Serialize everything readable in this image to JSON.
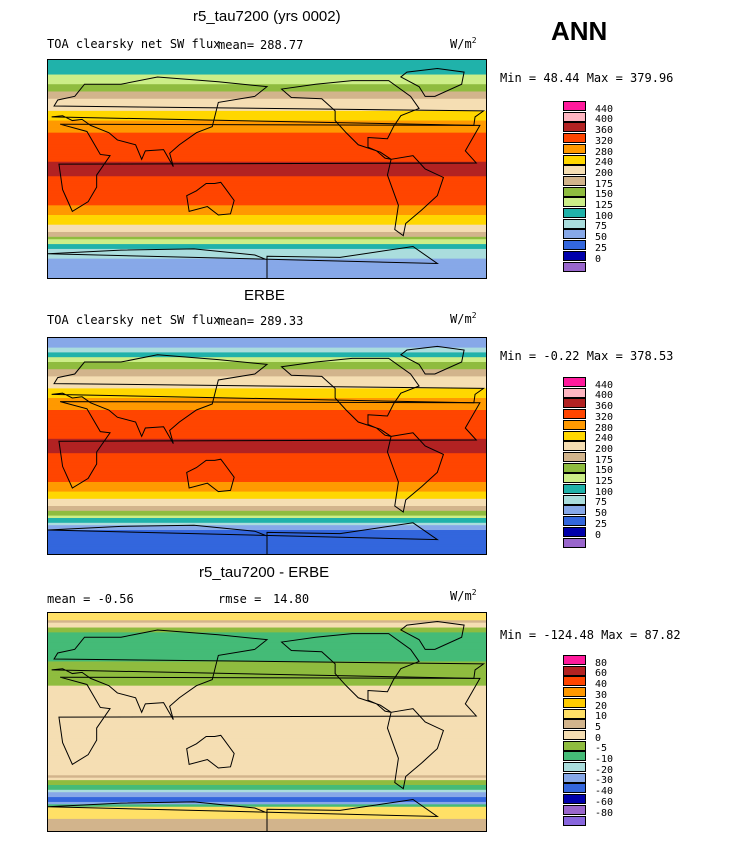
{
  "header": {
    "ann_label": "ANN"
  },
  "panels": [
    {
      "title": "r5_tau7200 (yrs 0002)",
      "variable_label": "TOA clearsky net SW flux",
      "mean_label": "mean=",
      "mean_value": "288.77",
      "units_base": "W/m",
      "units_exp": "2",
      "minmax": "Min =  48.44 Max = 379.96",
      "type": "field"
    },
    {
      "title": "ERBE",
      "variable_label": "TOA clearsky net SW flux",
      "mean_label": "mean=",
      "mean_value": "289.33",
      "units_base": "W/m",
      "units_exp": "2",
      "minmax": "Min =  -0.22 Max = 378.53",
      "type": "field"
    },
    {
      "title": "r5_tau7200 - ERBE",
      "variable_label": "mean =  -0.56",
      "mean_label": "rmse =",
      "mean_value": "14.80",
      "units_base": "W/m",
      "units_exp": "2",
      "minmax": "Min = -124.48 Max =  87.82",
      "type": "diff"
    }
  ],
  "chart_data": [
    {
      "type": "heatmap",
      "title": "r5_tau7200 (yrs 0002)",
      "variable": "TOA clearsky net SW flux",
      "units": "W/m2",
      "mean": 288.77,
      "min": 48.44,
      "max": 379.96,
      "legend_levels": [
        "440",
        "400",
        "360",
        "320",
        "280",
        "240",
        "200",
        "175",
        "150",
        "125",
        "100",
        "75",
        "50",
        "25",
        "0"
      ],
      "legend_colors": [
        "#ff1a9c",
        "#ffb6c1",
        "#b22222",
        "#ff4500",
        "#ff9900",
        "#ffd700",
        "#f5deb3",
        "#d2b48c",
        "#8fbc3f",
        "#ccee88",
        "#20b2aa",
        "#aadddd",
        "#87a8e8",
        "#3366dd",
        "#0000aa",
        "#9966cc"
      ],
      "latitude_profile": [
        {
          "lat": 85,
          "value": 100
        },
        {
          "lat": 70,
          "value": 150
        },
        {
          "lat": 60,
          "value": 190
        },
        {
          "lat": 50,
          "value": 230
        },
        {
          "lat": 40,
          "value": 280
        },
        {
          "lat": 30,
          "value": 320
        },
        {
          "lat": 20,
          "value": 345
        },
        {
          "lat": 0,
          "value": 365
        },
        {
          "lat": -20,
          "value": 345
        },
        {
          "lat": -30,
          "value": 320
        },
        {
          "lat": -40,
          "value": 270
        },
        {
          "lat": -50,
          "value": 210
        },
        {
          "lat": -60,
          "value": 140
        },
        {
          "lat": -70,
          "value": 80
        },
        {
          "lat": -85,
          "value": 60
        }
      ]
    },
    {
      "type": "heatmap",
      "title": "ERBE",
      "variable": "TOA clearsky net SW flux",
      "units": "W/m2",
      "mean": 289.33,
      "min": -0.22,
      "max": 378.53,
      "legend_levels": [
        "440",
        "400",
        "360",
        "320",
        "280",
        "240",
        "200",
        "175",
        "150",
        "125",
        "100",
        "75",
        "50",
        "25",
        "0"
      ],
      "legend_colors": [
        "#ff1a9c",
        "#ffb6c1",
        "#b22222",
        "#ff4500",
        "#ff9900",
        "#ffd700",
        "#f5deb3",
        "#d2b48c",
        "#8fbc3f",
        "#ccee88",
        "#20b2aa",
        "#aadddd",
        "#87a8e8",
        "#3366dd",
        "#0000aa",
        "#9966cc"
      ],
      "latitude_profile": [
        {
          "lat": 85,
          "value": 60
        },
        {
          "lat": 70,
          "value": 150
        },
        {
          "lat": 60,
          "value": 190
        },
        {
          "lat": 50,
          "value": 230
        },
        {
          "lat": 40,
          "value": 280
        },
        {
          "lat": 30,
          "value": 320
        },
        {
          "lat": 20,
          "value": 345
        },
        {
          "lat": 0,
          "value": 365
        },
        {
          "lat": -20,
          "value": 345
        },
        {
          "lat": -30,
          "value": 320
        },
        {
          "lat": -40,
          "value": 270
        },
        {
          "lat": -50,
          "value": 200
        },
        {
          "lat": -60,
          "value": 130
        },
        {
          "lat": -70,
          "value": 50
        },
        {
          "lat": -85,
          "value": 30
        }
      ]
    },
    {
      "type": "heatmap",
      "title": "r5_tau7200 - ERBE",
      "units": "W/m2",
      "mean": -0.56,
      "rmse": 14.8,
      "min": -124.48,
      "max": 87.82,
      "legend_levels": [
        "80",
        "60",
        "40",
        "30",
        "20",
        "10",
        "5",
        "0",
        "-5",
        "-10",
        "-20",
        "-30",
        "-40",
        "-60",
        "-80"
      ],
      "legend_colors": [
        "#ff1a9c",
        "#b22222",
        "#ff4500",
        "#ff9900",
        "#ffcc00",
        "#ffe066",
        "#d2b48c",
        "#f5deb3",
        "#8fbc3f",
        "#44bb77",
        "#aadddd",
        "#87a8e8",
        "#3366dd",
        "#0000aa",
        "#9966cc",
        "#8866dd"
      ],
      "latitude_profile": [
        {
          "lat": 85,
          "value": 10
        },
        {
          "lat": 70,
          "value": -10
        },
        {
          "lat": 50,
          "value": -5
        },
        {
          "lat": 30,
          "value": 0
        },
        {
          "lat": 0,
          "value": 0
        },
        {
          "lat": -30,
          "value": 0
        },
        {
          "lat": -45,
          "value": 5
        },
        {
          "lat": -55,
          "value": -10
        },
        {
          "lat": -65,
          "value": -40
        },
        {
          "lat": -72,
          "value": 20
        },
        {
          "lat": -85,
          "value": 5
        }
      ]
    }
  ]
}
